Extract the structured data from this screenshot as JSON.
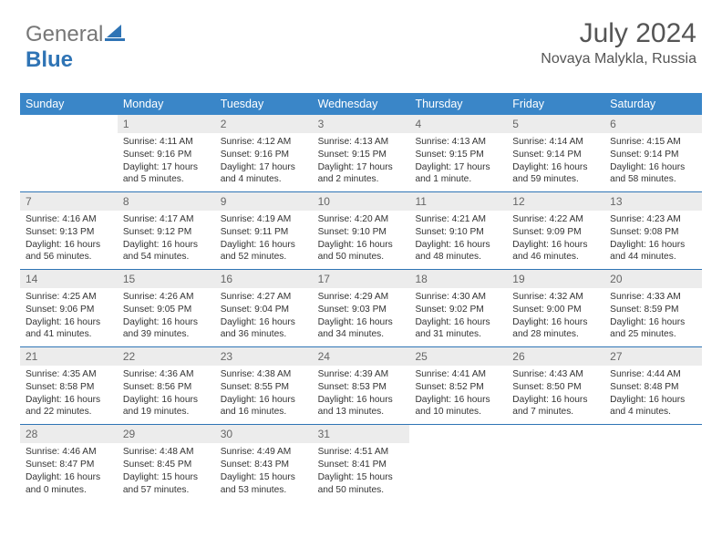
{
  "brand": {
    "part1": "General",
    "part2": "Blue"
  },
  "header": {
    "month": "July 2024",
    "location": "Novaya Malykla, Russia"
  },
  "colors": {
    "header_bg": "#3a86c8",
    "header_text": "#ffffff",
    "week_border": "#2f74b5",
    "daynum_bg": "#ececec",
    "brand_blue": "#2f74b5"
  },
  "weekdays": [
    "Sunday",
    "Monday",
    "Tuesday",
    "Wednesday",
    "Thursday",
    "Friday",
    "Saturday"
  ],
  "days": [
    {
      "n": "",
      "sr": "",
      "ss": "",
      "dl": ""
    },
    {
      "n": "1",
      "sr": "Sunrise: 4:11 AM",
      "ss": "Sunset: 9:16 PM",
      "dl": "Daylight: 17 hours and 5 minutes."
    },
    {
      "n": "2",
      "sr": "Sunrise: 4:12 AM",
      "ss": "Sunset: 9:16 PM",
      "dl": "Daylight: 17 hours and 4 minutes."
    },
    {
      "n": "3",
      "sr": "Sunrise: 4:13 AM",
      "ss": "Sunset: 9:15 PM",
      "dl": "Daylight: 17 hours and 2 minutes."
    },
    {
      "n": "4",
      "sr": "Sunrise: 4:13 AM",
      "ss": "Sunset: 9:15 PM",
      "dl": "Daylight: 17 hours and 1 minute."
    },
    {
      "n": "5",
      "sr": "Sunrise: 4:14 AM",
      "ss": "Sunset: 9:14 PM",
      "dl": "Daylight: 16 hours and 59 minutes."
    },
    {
      "n": "6",
      "sr": "Sunrise: 4:15 AM",
      "ss": "Sunset: 9:14 PM",
      "dl": "Daylight: 16 hours and 58 minutes."
    },
    {
      "n": "7",
      "sr": "Sunrise: 4:16 AM",
      "ss": "Sunset: 9:13 PM",
      "dl": "Daylight: 16 hours and 56 minutes."
    },
    {
      "n": "8",
      "sr": "Sunrise: 4:17 AM",
      "ss": "Sunset: 9:12 PM",
      "dl": "Daylight: 16 hours and 54 minutes."
    },
    {
      "n": "9",
      "sr": "Sunrise: 4:19 AM",
      "ss": "Sunset: 9:11 PM",
      "dl": "Daylight: 16 hours and 52 minutes."
    },
    {
      "n": "10",
      "sr": "Sunrise: 4:20 AM",
      "ss": "Sunset: 9:10 PM",
      "dl": "Daylight: 16 hours and 50 minutes."
    },
    {
      "n": "11",
      "sr": "Sunrise: 4:21 AM",
      "ss": "Sunset: 9:10 PM",
      "dl": "Daylight: 16 hours and 48 minutes."
    },
    {
      "n": "12",
      "sr": "Sunrise: 4:22 AM",
      "ss": "Sunset: 9:09 PM",
      "dl": "Daylight: 16 hours and 46 minutes."
    },
    {
      "n": "13",
      "sr": "Sunrise: 4:23 AM",
      "ss": "Sunset: 9:08 PM",
      "dl": "Daylight: 16 hours and 44 minutes."
    },
    {
      "n": "14",
      "sr": "Sunrise: 4:25 AM",
      "ss": "Sunset: 9:06 PM",
      "dl": "Daylight: 16 hours and 41 minutes."
    },
    {
      "n": "15",
      "sr": "Sunrise: 4:26 AM",
      "ss": "Sunset: 9:05 PM",
      "dl": "Daylight: 16 hours and 39 minutes."
    },
    {
      "n": "16",
      "sr": "Sunrise: 4:27 AM",
      "ss": "Sunset: 9:04 PM",
      "dl": "Daylight: 16 hours and 36 minutes."
    },
    {
      "n": "17",
      "sr": "Sunrise: 4:29 AM",
      "ss": "Sunset: 9:03 PM",
      "dl": "Daylight: 16 hours and 34 minutes."
    },
    {
      "n": "18",
      "sr": "Sunrise: 4:30 AM",
      "ss": "Sunset: 9:02 PM",
      "dl": "Daylight: 16 hours and 31 minutes."
    },
    {
      "n": "19",
      "sr": "Sunrise: 4:32 AM",
      "ss": "Sunset: 9:00 PM",
      "dl": "Daylight: 16 hours and 28 minutes."
    },
    {
      "n": "20",
      "sr": "Sunrise: 4:33 AM",
      "ss": "Sunset: 8:59 PM",
      "dl": "Daylight: 16 hours and 25 minutes."
    },
    {
      "n": "21",
      "sr": "Sunrise: 4:35 AM",
      "ss": "Sunset: 8:58 PM",
      "dl": "Daylight: 16 hours and 22 minutes."
    },
    {
      "n": "22",
      "sr": "Sunrise: 4:36 AM",
      "ss": "Sunset: 8:56 PM",
      "dl": "Daylight: 16 hours and 19 minutes."
    },
    {
      "n": "23",
      "sr": "Sunrise: 4:38 AM",
      "ss": "Sunset: 8:55 PM",
      "dl": "Daylight: 16 hours and 16 minutes."
    },
    {
      "n": "24",
      "sr": "Sunrise: 4:39 AM",
      "ss": "Sunset: 8:53 PM",
      "dl": "Daylight: 16 hours and 13 minutes."
    },
    {
      "n": "25",
      "sr": "Sunrise: 4:41 AM",
      "ss": "Sunset: 8:52 PM",
      "dl": "Daylight: 16 hours and 10 minutes."
    },
    {
      "n": "26",
      "sr": "Sunrise: 4:43 AM",
      "ss": "Sunset: 8:50 PM",
      "dl": "Daylight: 16 hours and 7 minutes."
    },
    {
      "n": "27",
      "sr": "Sunrise: 4:44 AM",
      "ss": "Sunset: 8:48 PM",
      "dl": "Daylight: 16 hours and 4 minutes."
    },
    {
      "n": "28",
      "sr": "Sunrise: 4:46 AM",
      "ss": "Sunset: 8:47 PM",
      "dl": "Daylight: 16 hours and 0 minutes."
    },
    {
      "n": "29",
      "sr": "Sunrise: 4:48 AM",
      "ss": "Sunset: 8:45 PM",
      "dl": "Daylight: 15 hours and 57 minutes."
    },
    {
      "n": "30",
      "sr": "Sunrise: 4:49 AM",
      "ss": "Sunset: 8:43 PM",
      "dl": "Daylight: 15 hours and 53 minutes."
    },
    {
      "n": "31",
      "sr": "Sunrise: 4:51 AM",
      "ss": "Sunset: 8:41 PM",
      "dl": "Daylight: 15 hours and 50 minutes."
    },
    {
      "n": "",
      "sr": "",
      "ss": "",
      "dl": ""
    },
    {
      "n": "",
      "sr": "",
      "ss": "",
      "dl": ""
    },
    {
      "n": "",
      "sr": "",
      "ss": "",
      "dl": ""
    }
  ]
}
